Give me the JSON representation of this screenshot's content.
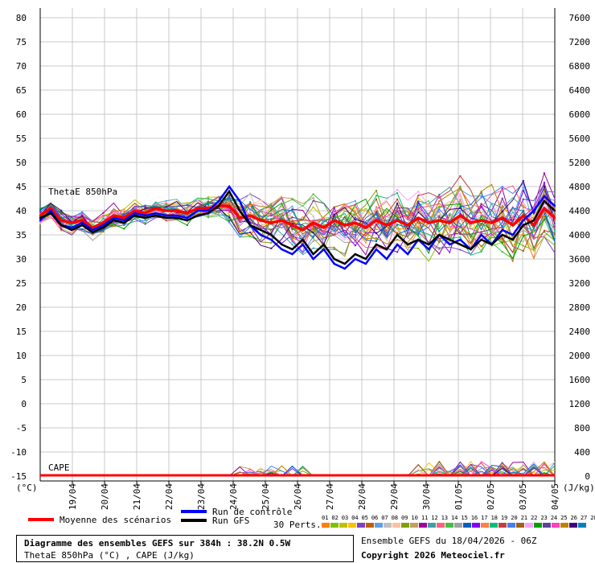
{
  "chart_data": {
    "type": "line",
    "title": "Diagramme des ensembles GEFS sur 384h : 38.2N 0.5W",
    "subtitle": "ThetaE 850hPa (°C) , CAPE (J/kg)",
    "y_left_ticks": [
      80,
      75,
      70,
      65,
      60,
      55,
      50,
      45,
      40,
      35,
      30,
      25,
      20,
      15,
      10,
      5,
      0,
      -5,
      -10,
      -15
    ],
    "y_left_unit": "(°C)",
    "y_right_ticks": [
      7600,
      7200,
      6800,
      6400,
      6000,
      5600,
      5200,
      4800,
      4400,
      4000,
      3600,
      3200,
      2800,
      2400,
      2000,
      1600,
      1200,
      800,
      400,
      0
    ],
    "y_right_unit": "(J/kg)",
    "ylim": [
      -15,
      82
    ],
    "x_ticks": [
      "19/04",
      "20/04",
      "21/04",
      "22/04",
      "23/04",
      "24/04",
      "25/04",
      "26/04",
      "27/04",
      "28/04",
      "29/04",
      "30/04",
      "01/05",
      "02/05",
      "03/05",
      "04/05"
    ],
    "panel_labels": {
      "theta": "ThetaE 850hPa",
      "cape": "CAPE"
    },
    "grid": true,
    "series": [
      {
        "name": "Moyenne des scénarios",
        "color": "#ff0000",
        "values": [
          39,
          40.5,
          38,
          37.5,
          38,
          36.5,
          37.5,
          39,
          38.5,
          40,
          39.5,
          40.5,
          40,
          40,
          39.5,
          40.5,
          40.5,
          41,
          41,
          38.5,
          39,
          38,
          37.5,
          38,
          37,
          36,
          37.5,
          36.5,
          38,
          37,
          37.5,
          36.5,
          38,
          37,
          38,
          37,
          38.5,
          37.5,
          38,
          37.5,
          39,
          37.5,
          38,
          37.5,
          38.5,
          37,
          39,
          37,
          40.5,
          38.5
        ]
      },
      {
        "name": "Run de contrôle",
        "color": "#0000ff",
        "values": [
          38,
          40,
          37,
          36.5,
          37.5,
          36,
          37,
          38.5,
          38,
          39.5,
          39,
          39.5,
          39,
          39,
          38.5,
          40,
          40,
          42,
          45,
          42,
          37,
          35,
          34,
          32,
          31,
          33,
          30,
          32,
          29,
          28,
          30,
          29,
          32,
          30,
          33,
          31,
          34,
          32,
          35,
          33,
          34,
          32,
          35,
          33,
          36,
          35,
          38,
          40,
          43,
          41
        ]
      },
      {
        "name": "Run GFS",
        "color": "#000000",
        "values": [
          38.5,
          39.5,
          37,
          36,
          37,
          35.5,
          36.5,
          38,
          37.5,
          39,
          38.5,
          39,
          38.5,
          38.5,
          38,
          39,
          39.5,
          41,
          44,
          40,
          37,
          36,
          35,
          33,
          32,
          34,
          31,
          33,
          30,
          29,
          31,
          30,
          33,
          32,
          35,
          33,
          34,
          33,
          35,
          34,
          33,
          32,
          34,
          33,
          35,
          34,
          37,
          38,
          42,
          40
        ]
      }
    ],
    "perturbation_colors": [
      "#ff8000",
      "#80c000",
      "#c0c000",
      "#ffc000",
      "#8040c0",
      "#c06000",
      "#60a0e0",
      "#c0c0c0",
      "#ffc0a0",
      "#80a000",
      "#c0a060",
      "#a000a0",
      "#40a0a0",
      "#ff6080",
      "#40c040",
      "#a0a0a0",
      "#0060c0",
      "#8000ff",
      "#ff8040",
      "#00c080",
      "#c04040",
      "#4080ff",
      "#a06020",
      "#ffa0ff",
      "#00a000",
      "#6040a0",
      "#ff40c0",
      "#c08000",
      "#400080",
      "#0080c0"
    ]
  },
  "legend": {
    "mean_label": "Moyenne des scénarios",
    "control_label": "Run de contrôle",
    "gfs_label": "Run GFS",
    "perts_label": "30 Perts.",
    "pert_numbers": "01 02 03 04 05 06 07 08 09 10 11 12 13 14 15 16 17 18 19 20 21 22 23 24 25 26 27 28 29 30"
  },
  "footer": {
    "title": "Diagramme des ensembles GEFS sur 384h : 38.2N 0.5W",
    "subtitle": "ThetaE 850hPa (°C) , CAPE (J/kg)",
    "run": "Ensemble GEFS du 18/04/2026 - 06Z",
    "copyright": "Copyright 2026 Meteociel.fr"
  }
}
